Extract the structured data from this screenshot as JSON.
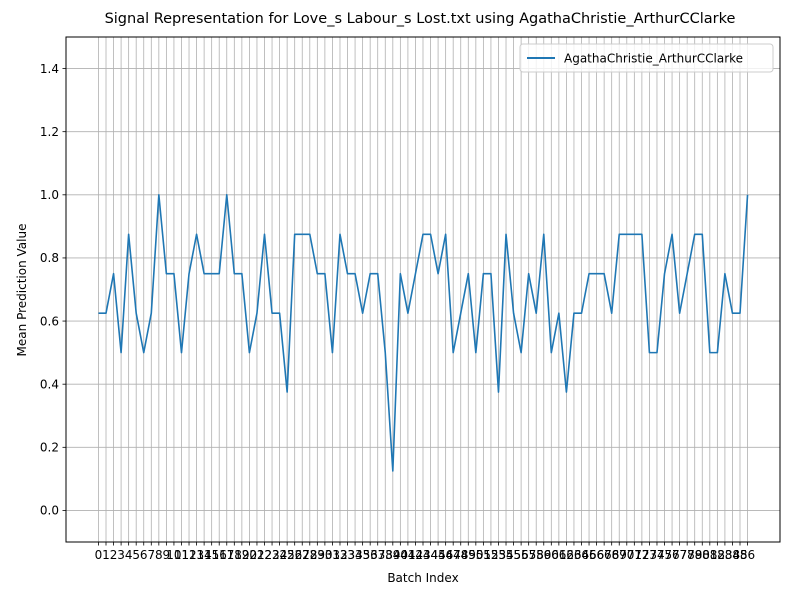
{
  "chart_data": {
    "type": "line",
    "title": "Signal Representation for Love_s Labour_s Lost.txt using AgathaChristie_ArthurCClarke",
    "xlabel": "Batch Index",
    "ylabel": "Mean Prediction Value",
    "xlim": [
      -4.3,
      90.3
    ],
    "ylim": [
      -0.1,
      1.5
    ],
    "yticks": [
      "0.0",
      "0.2",
      "0.4",
      "0.6",
      "0.8",
      "1.0",
      "1.2",
      "1.4"
    ],
    "grid": true,
    "legend_position": "top-right",
    "series": [
      {
        "name": "AgathaChristie_ArthurCClarke",
        "color": "#1f77b4",
        "x": [
          0,
          1,
          2,
          3,
          4,
          5,
          6,
          7,
          8,
          9,
          10,
          11,
          12,
          13,
          14,
          15,
          16,
          17,
          18,
          19,
          20,
          21,
          22,
          23,
          24,
          25,
          26,
          27,
          28,
          29,
          30,
          31,
          32,
          33,
          34,
          35,
          36,
          37,
          38,
          39,
          40,
          41,
          42,
          43,
          44,
          45,
          46,
          47,
          48,
          49,
          50,
          51,
          52,
          53,
          54,
          55,
          56,
          57,
          58,
          59,
          60,
          61,
          62,
          63,
          64,
          65,
          66,
          67,
          68,
          69,
          70,
          71,
          72,
          73,
          74,
          75,
          76,
          77,
          78,
          79,
          80,
          81,
          82,
          83,
          84,
          85,
          86
        ],
        "values": [
          0.625,
          0.625,
          0.75,
          0.5,
          0.875,
          0.625,
          0.5,
          0.625,
          1.0,
          0.75,
          0.75,
          0.5,
          0.75,
          0.875,
          0.75,
          0.75,
          0.75,
          1.0,
          0.75,
          0.75,
          0.5,
          0.625,
          0.875,
          0.625,
          0.625,
          0.375,
          0.875,
          0.875,
          0.875,
          0.75,
          0.75,
          0.5,
          0.875,
          0.75,
          0.75,
          0.625,
          0.75,
          0.75,
          0.5,
          0.125,
          0.75,
          0.625,
          0.75,
          0.875,
          0.875,
          0.75,
          0.875,
          0.5,
          0.625,
          0.75,
          0.5,
          0.75,
          0.75,
          0.375,
          0.875,
          0.625,
          0.5,
          0.75,
          0.625,
          0.875,
          0.5,
          0.625,
          0.375,
          0.625,
          0.625,
          0.75,
          0.75,
          0.75,
          0.625,
          0.875,
          0.875,
          0.875,
          0.875,
          0.5,
          0.5,
          0.75,
          0.875,
          0.625,
          0.75,
          0.875,
          0.875,
          0.5,
          0.5,
          0.75,
          0.625,
          0.625,
          1.0
        ]
      }
    ]
  }
}
